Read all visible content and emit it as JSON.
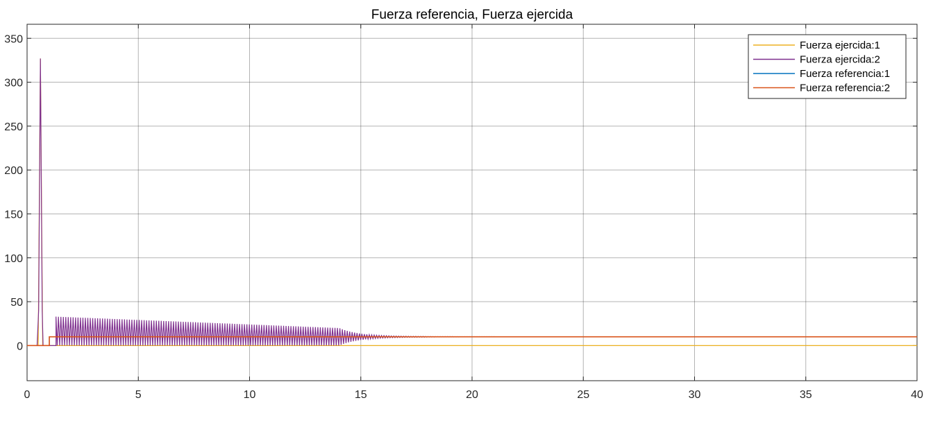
{
  "chart_data": {
    "type": "line",
    "title": "Fuerza referencia, Fuerza ejercida",
    "xlabel": "",
    "ylabel": "",
    "xlim": [
      0,
      40
    ],
    "ylim": [
      -40,
      366
    ],
    "x_ticks": [
      0,
      5,
      10,
      15,
      20,
      25,
      30,
      35,
      40
    ],
    "y_ticks": [
      0,
      50,
      100,
      150,
      200,
      250,
      300,
      350
    ],
    "grid": true,
    "legend_position": "top-right",
    "series": [
      {
        "name": "Fuerza ejercida:1",
        "color": "#EDB120",
        "points": [
          [
            0,
            0
          ],
          [
            0.5,
            0
          ],
          [
            0.6,
            327
          ],
          [
            0.7,
            0
          ],
          [
            40,
            0
          ]
        ]
      },
      {
        "name": "Fuerza ejercida:2",
        "color": "#7E2F8E",
        "description": "step response with initial spike near x=0.6 peaking at 327, then oscillation around 10 with envelope decaying from ~33 to ~10 by x≈18",
        "spike": {
          "x": 0.6,
          "peak": 327
        },
        "oscillation": {
          "start": 1.3,
          "settle": 18,
          "mean": 10,
          "start_amplitude": 23,
          "end_amplitude": 0.3
        }
      },
      {
        "name": "Fuerza referencia:1",
        "color": "#0072BD",
        "points": [
          [
            0,
            0
          ],
          [
            1.0,
            0
          ],
          [
            1.0,
            10
          ],
          [
            40,
            10
          ]
        ]
      },
      {
        "name": "Fuerza referencia:2",
        "color": "#D95319",
        "points": [
          [
            0,
            0
          ],
          [
            1.0,
            0
          ],
          [
            1.0,
            10
          ],
          [
            40,
            10
          ]
        ]
      }
    ]
  }
}
